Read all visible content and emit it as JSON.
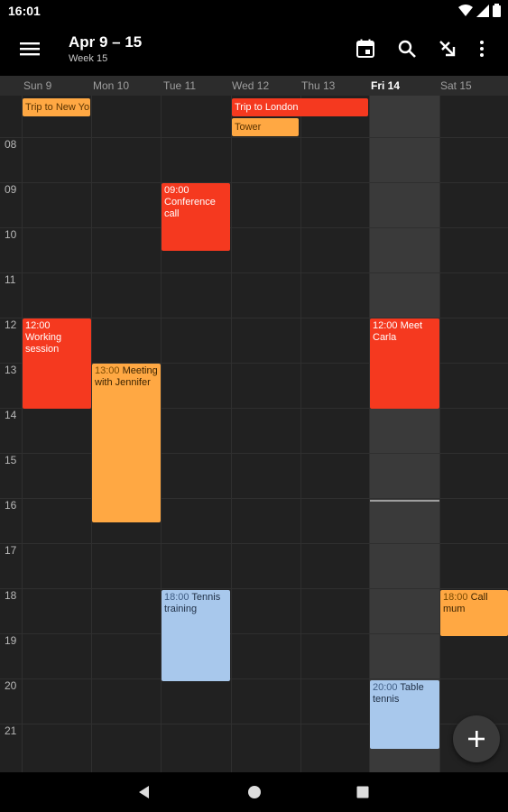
{
  "status_bar": {
    "time": "16:01"
  },
  "app_bar": {
    "title": "Apr 9 – 15",
    "subtitle": "Week 15",
    "icons": [
      "menu-icon",
      "calendar-today-icon",
      "search-icon",
      "call-made-icon",
      "more-vert-icon"
    ]
  },
  "days": [
    {
      "label": "Sun 9"
    },
    {
      "label": "Mon 10"
    },
    {
      "label": "Tue 11"
    },
    {
      "label": "Wed 12"
    },
    {
      "label": "Thu 13"
    },
    {
      "label": "Fri 14",
      "today": true
    },
    {
      "label": "Sat 15"
    }
  ],
  "hours": [
    "08",
    "09",
    "10",
    "11",
    "12",
    "13",
    "14",
    "15",
    "16",
    "17",
    "18",
    "19",
    "20",
    "21"
  ],
  "all_day_events": [
    {
      "title": "Trip to New Yo",
      "color": "#ffa843"
    },
    {
      "title": "Trip to London",
      "color": "#f5391f"
    },
    {
      "title": "Tower",
      "color": "#ffa843"
    }
  ],
  "events": [
    {
      "time": "09:00",
      "title": "Conference call",
      "day": "Tue 11",
      "color": "red"
    },
    {
      "time": "12:00",
      "title": "Working session",
      "day": "Sun 9",
      "color": "red"
    },
    {
      "time": "12:00",
      "title": "Meet Carla",
      "day": "Fri 14",
      "color": "red"
    },
    {
      "time": "13:00",
      "title": "Meeting with Jennifer",
      "day": "Mon 10",
      "color": "orange"
    },
    {
      "time": "18:00",
      "title": "Tennis training",
      "day": "Tue 11",
      "color": "blue"
    },
    {
      "time": "18:00",
      "title": "Call mum",
      "day": "Sat 15",
      "color": "orange"
    },
    {
      "time": "20:00",
      "title": "Table tennis",
      "day": "Fri 14",
      "color": "blue"
    }
  ],
  "colors": {
    "red": "#f5391f",
    "orange": "#ffa843",
    "blue": "#a8c8ec",
    "background": "#212121"
  },
  "fab": {
    "icon": "add-icon"
  },
  "nav_bar": {
    "icons": [
      "back-icon",
      "home-icon",
      "recents-icon"
    ]
  }
}
